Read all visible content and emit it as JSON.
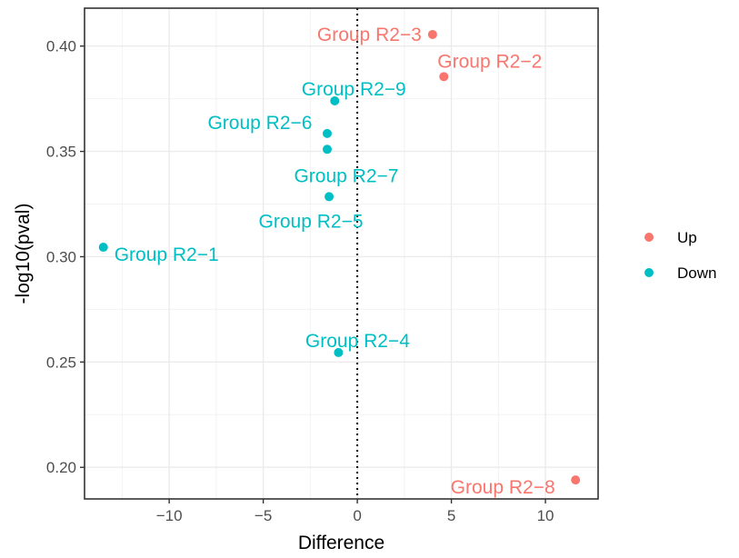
{
  "chart_data": {
    "type": "scatter",
    "title": "",
    "xlabel": "Difference",
    "ylabel": "-log10(pval)",
    "xlim": [
      -14.5,
      12.8
    ],
    "ylim": [
      0.185,
      0.418
    ],
    "x_ticks": [
      -10,
      -5,
      0,
      5,
      10
    ],
    "x_tick_labels": [
      "−10",
      "−5",
      "0",
      "5",
      "10"
    ],
    "y_ticks": [
      0.2,
      0.25,
      0.3,
      0.35,
      0.4
    ],
    "y_tick_labels": [
      "0.20",
      "0.25",
      "0.30",
      "0.35",
      "0.40"
    ],
    "grid": true,
    "vline": 0,
    "legend": {
      "position": "right",
      "entries": [
        {
          "name": "Up",
          "color": "#F8766D"
        },
        {
          "name": "Down",
          "color": "#00BFC4"
        }
      ]
    },
    "points": [
      {
        "label": "Group R2−1",
        "x": -13.5,
        "y": 0.3045,
        "group": "Down"
      },
      {
        "label": "Group R2−2",
        "x": 4.6,
        "y": 0.3855,
        "group": "Up"
      },
      {
        "label": "Group R2−3",
        "x": 4.0,
        "y": 0.4055,
        "group": "Up"
      },
      {
        "label": "Group R2−4",
        "x": -1.0,
        "y": 0.2545,
        "group": "Down"
      },
      {
        "label": "Group R2−5",
        "x": -1.5,
        "y": 0.3285,
        "group": "Down"
      },
      {
        "label": "Group R2−6",
        "x": -1.6,
        "y": 0.3585,
        "group": "Down"
      },
      {
        "label": "Group R2−7",
        "x": -1.6,
        "y": 0.351,
        "group": "Down"
      },
      {
        "label": "Group R2−8",
        "x": 11.6,
        "y": 0.194,
        "group": "Up"
      },
      {
        "label": "Group R2−9",
        "x": -1.2,
        "y": 0.374,
        "group": "Down"
      }
    ]
  }
}
